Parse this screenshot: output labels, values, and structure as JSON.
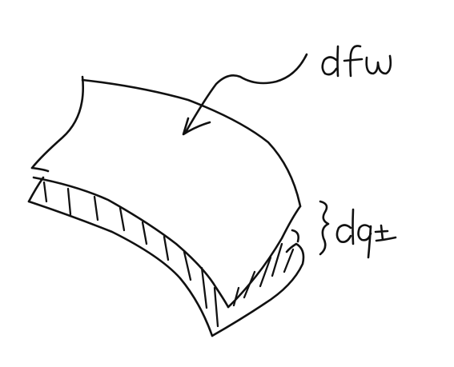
{
  "diagram": {
    "labels": {
      "top_surface": "dfw",
      "layer_thickness": "dq±"
    }
  }
}
